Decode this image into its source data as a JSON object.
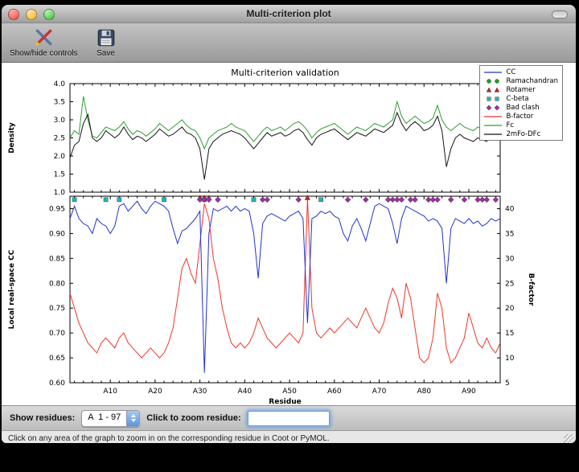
{
  "window": {
    "title": "Multi-criterion plot"
  },
  "toolbar": {
    "buttons": [
      {
        "label": "Show/hide controls"
      },
      {
        "label": "Save"
      }
    ]
  },
  "figure": {
    "title": "Multi-criterion validation"
  },
  "legend": {
    "entries": [
      {
        "label": "CC",
        "glyph": "line",
        "color": "#2233cc"
      },
      {
        "label": "Ramachandran",
        "glyph": "circle",
        "color": "#1e9e1e"
      },
      {
        "label": "Rotamer",
        "glyph": "triangle",
        "color": "#cc2020"
      },
      {
        "label": "C-beta",
        "glyph": "square",
        "color": "#28b2b2"
      },
      {
        "label": "Bad clash",
        "glyph": "diamond",
        "color": "#9a30a0"
      },
      {
        "label": "B-factor",
        "glyph": "line",
        "color": "#ee3528"
      },
      {
        "label": "Fc",
        "glyph": "line",
        "color": "#2e9e2e"
      },
      {
        "label": "2mFo-DFc",
        "glyph": "line",
        "color": "#141414"
      }
    ]
  },
  "controls": {
    "show_residues_label": "Show residues:",
    "residue_range": "A  1 - 97",
    "zoom_label": "Click to zoom residue:",
    "zoom_value": ""
  },
  "status": "Click on any area of the graph to zoom in on the corresponding residue in Coot or PyMOL.",
  "chart_data": [
    {
      "type": "line",
      "title": "Multi-criterion validation",
      "ylabel": "Density",
      "ylim": [
        1.0,
        4.0
      ],
      "yticks": [
        {
          "v": 1.0,
          "label": "1.0"
        },
        {
          "v": 1.5,
          "label": "1.5"
        },
        {
          "v": 2.0,
          "label": "2.0"
        },
        {
          "v": 2.5,
          "label": "2.5"
        },
        {
          "v": 3.0,
          "label": "3.0"
        },
        {
          "v": 3.5,
          "label": "3.5"
        },
        {
          "v": 4.0,
          "label": "4.0"
        }
      ],
      "x_range": [
        1,
        97
      ],
      "series": [
        {
          "name": "Fc",
          "color": "#2e9e2e",
          "values": [
            2.5,
            2.7,
            2.6,
            3.65,
            3.0,
            2.55,
            2.5,
            2.65,
            2.8,
            2.75,
            2.7,
            2.8,
            2.95,
            2.75,
            2.6,
            2.7,
            2.65,
            2.55,
            2.65,
            2.75,
            2.9,
            2.8,
            2.7,
            2.8,
            2.9,
            3.0,
            2.85,
            2.75,
            2.7,
            2.5,
            2.2,
            2.5,
            2.6,
            2.7,
            2.75,
            2.8,
            2.9,
            2.8,
            2.75,
            2.7,
            2.55,
            2.4,
            2.55,
            2.7,
            2.8,
            2.7,
            2.75,
            2.8,
            2.7,
            2.8,
            2.9,
            2.95,
            2.85,
            2.7,
            2.5,
            2.65,
            2.75,
            2.8,
            2.85,
            2.9,
            2.8,
            2.7,
            2.6,
            2.7,
            2.8,
            2.75,
            2.7,
            2.8,
            2.9,
            2.85,
            2.8,
            2.9,
            3.0,
            3.5,
            3.1,
            2.9,
            3.0,
            3.1,
            3.0,
            2.9,
            2.95,
            3.05,
            3.4,
            3.0,
            2.8,
            2.7,
            2.8,
            2.9,
            2.8,
            2.75,
            2.7,
            2.8,
            2.75,
            2.7,
            3.3,
            2.9,
            3.0
          ]
        },
        {
          "name": "2mFo-DFc",
          "color": "#141414",
          "values": [
            1.95,
            2.3,
            2.4,
            2.9,
            3.15,
            2.5,
            2.4,
            2.5,
            2.7,
            2.6,
            2.5,
            2.6,
            2.8,
            2.6,
            2.45,
            2.55,
            2.5,
            2.4,
            2.5,
            2.6,
            2.75,
            2.65,
            2.55,
            2.6,
            2.7,
            2.8,
            2.65,
            2.6,
            2.5,
            2.2,
            1.35,
            2.2,
            2.4,
            2.5,
            2.6,
            2.65,
            2.7,
            2.65,
            2.6,
            2.5,
            2.35,
            2.2,
            2.35,
            2.5,
            2.65,
            2.55,
            2.6,
            2.65,
            2.55,
            2.6,
            2.7,
            2.75,
            2.65,
            2.45,
            2.3,
            2.5,
            2.6,
            2.65,
            2.7,
            2.75,
            2.65,
            2.55,
            2.45,
            2.55,
            2.65,
            2.6,
            2.55,
            2.65,
            2.75,
            2.7,
            2.65,
            2.75,
            2.85,
            3.2,
            2.9,
            2.7,
            2.85,
            2.95,
            2.85,
            2.7,
            2.75,
            2.85,
            3.1,
            2.7,
            1.7,
            2.2,
            2.5,
            2.6,
            2.5,
            2.45,
            2.4,
            2.5,
            2.45,
            2.4,
            2.9,
            2.6,
            2.65
          ]
        }
      ]
    },
    {
      "type": "line+scatter",
      "xlabel": "Residue",
      "ylabel_left": "Local real-space CC",
      "ylabel_right": "B-factor",
      "ylim_left": [
        0.6,
        0.975
      ],
      "ylim_right": [
        5,
        42.5
      ],
      "yticks_left": [
        {
          "v": 0.6,
          "label": "0.60"
        },
        {
          "v": 0.65,
          "label": "0.65"
        },
        {
          "v": 0.7,
          "label": "0.70"
        },
        {
          "v": 0.75,
          "label": "0.75"
        },
        {
          "v": 0.8,
          "label": "0.80"
        },
        {
          "v": 0.85,
          "label": "0.85"
        },
        {
          "v": 0.9,
          "label": "0.90"
        },
        {
          "v": 0.95,
          "label": "0.95"
        }
      ],
      "yticks_right": [
        {
          "v": 5,
          "label": "5"
        },
        {
          "v": 10,
          "label": "10"
        },
        {
          "v": 15,
          "label": "15"
        },
        {
          "v": 20,
          "label": "20"
        },
        {
          "v": 25,
          "label": "25"
        },
        {
          "v": 30,
          "label": "30"
        },
        {
          "v": 35,
          "label": "35"
        },
        {
          "v": 40,
          "label": "40"
        }
      ],
      "xticks": [
        {
          "v": 10,
          "label": "A10"
        },
        {
          "v": 20,
          "label": "A20"
        },
        {
          "v": 30,
          "label": "A30"
        },
        {
          "v": 40,
          "label": "A40"
        },
        {
          "v": 50,
          "label": "A50"
        },
        {
          "v": 60,
          "label": "A60"
        },
        {
          "v": 70,
          "label": "A70"
        },
        {
          "v": 80,
          "label": "A80"
        },
        {
          "v": 90,
          "label": "A90"
        }
      ],
      "minor_xtick_step": 2,
      "x_range": [
        1,
        97
      ],
      "series": [
        {
          "name": "B-factor",
          "axis": "right",
          "color": "#ee3528",
          "values": [
            23,
            20,
            17,
            15,
            13,
            12,
            11,
            13,
            14,
            13,
            12,
            14,
            15,
            13,
            12,
            11,
            10,
            11,
            12,
            11,
            10,
            11,
            13,
            16,
            22,
            28,
            30,
            27,
            25,
            33,
            41,
            38,
            30,
            26,
            20,
            16,
            13,
            12,
            13,
            12,
            13,
            15,
            18,
            16,
            14,
            13,
            12,
            13,
            14,
            15,
            14,
            13,
            15,
            42,
            20,
            15,
            14,
            15,
            16,
            15,
            16,
            17,
            18,
            17,
            16,
            18,
            20,
            18,
            16,
            15,
            17,
            21,
            24,
            22,
            18,
            25,
            22,
            16,
            10,
            9,
            10,
            14,
            23,
            20,
            12,
            9,
            10,
            12,
            14,
            19,
            16,
            13,
            12,
            14,
            12,
            11,
            13
          ]
        },
        {
          "name": "CC",
          "axis": "left",
          "color": "#2233cc",
          "values": [
            0.93,
            0.955,
            0.93,
            0.92,
            0.915,
            0.9,
            0.93,
            0.92,
            0.915,
            0.9,
            0.915,
            0.955,
            0.96,
            0.945,
            0.955,
            0.965,
            0.95,
            0.94,
            0.955,
            0.965,
            0.96,
            0.955,
            0.945,
            0.91,
            0.88,
            0.905,
            0.91,
            0.92,
            0.93,
            0.945,
            0.62,
            0.9,
            0.95,
            0.945,
            0.95,
            0.955,
            0.945,
            0.955,
            0.945,
            0.95,
            0.945,
            0.9,
            0.81,
            0.92,
            0.935,
            0.94,
            0.935,
            0.93,
            0.925,
            0.935,
            0.94,
            0.945,
            0.93,
            0.72,
            0.93,
            0.935,
            0.945,
            0.94,
            0.945,
            0.935,
            0.93,
            0.9,
            0.885,
            0.915,
            0.93,
            0.91,
            0.885,
            0.92,
            0.955,
            0.96,
            0.955,
            0.95,
            0.92,
            0.88,
            0.93,
            0.955,
            0.95,
            0.945,
            0.94,
            0.935,
            0.925,
            0.93,
            0.925,
            0.91,
            0.8,
            0.91,
            0.93,
            0.925,
            0.92,
            0.93,
            0.92,
            0.925,
            0.915,
            0.92,
            0.93,
            0.925,
            0.93
          ]
        }
      ],
      "markers": [
        {
          "name": "Ramachandran",
          "shape": "circle",
          "color": "#1e9e1e",
          "y": 0.968,
          "residues": []
        },
        {
          "name": "Rotamer",
          "shape": "triangle",
          "color": "#cc2020",
          "y": 0.972,
          "residues": [
            30,
            31,
            32,
            54
          ]
        },
        {
          "name": "C-beta",
          "shape": "square",
          "color": "#28b2b2",
          "y": 0.968,
          "residues": [
            2,
            9,
            12,
            22,
            31,
            42,
            57
          ]
        },
        {
          "name": "Bad clash",
          "shape": "diamond",
          "color": "#9a30a0",
          "y": 0.968,
          "residues": [
            30,
            31,
            32,
            34,
            44,
            45,
            52,
            63,
            67,
            72,
            73,
            74,
            75,
            77,
            78,
            81,
            82,
            83,
            86,
            89,
            92,
            93,
            94,
            96
          ]
        }
      ]
    }
  ]
}
